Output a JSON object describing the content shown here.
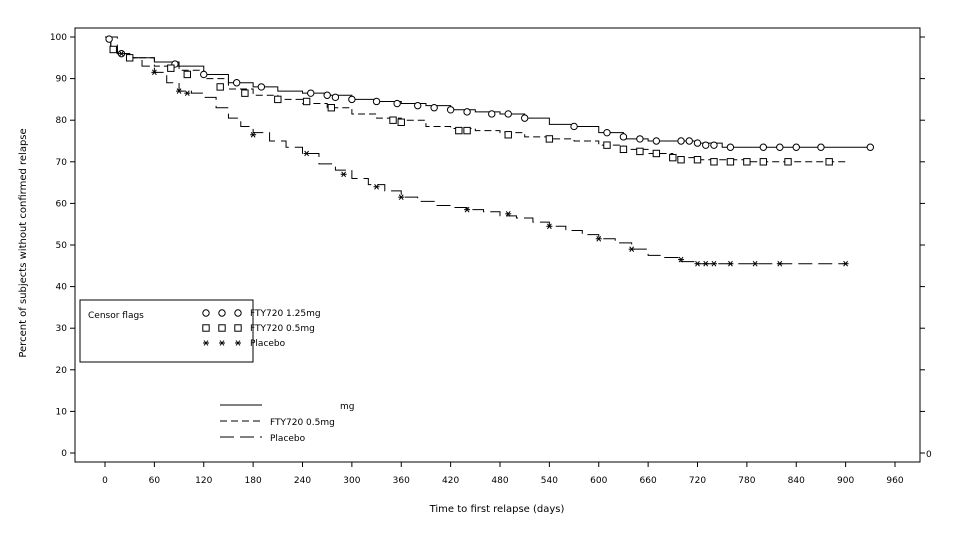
{
  "chart_data": {
    "type": "line",
    "title": "",
    "xlabel": "Time to first relapse (days)",
    "ylabel": "Percent of subjects without confirmed relapse",
    "xlim": [
      0,
      960
    ],
    "ylim": [
      0,
      100
    ],
    "xticks": [
      "0",
      "60",
      "120",
      "180",
      "240",
      "300",
      "360",
      "420",
      "480",
      "540",
      "600",
      "660",
      "720",
      "780",
      "840",
      "900",
      "960"
    ],
    "yticks": [
      "0",
      "10",
      "20",
      "30",
      "40",
      "50",
      "60",
      "70",
      "80",
      "90",
      "100"
    ],
    "right_axis_label": "0",
    "grid": false,
    "censor_legend": {
      "title": "Censor flags",
      "placement": "lower-left",
      "entries": [
        {
          "symbols": "O O O",
          "label": "FTY720 1.25mg"
        },
        {
          "symbols": "□ □ □",
          "label": "FTY720 0.5mg"
        },
        {
          "symbols": "* * *",
          "label": "Placebo"
        }
      ]
    },
    "line_legend": {
      "placement": "below-left",
      "entries": [
        {
          "style": "solid",
          "label": "mg"
        },
        {
          "style": "dashed",
          "label": "FTY720 0.5mg"
        },
        {
          "style": "long-dash",
          "label": "Placebo"
        }
      ]
    },
    "series": [
      {
        "name": "FTY720 1.25mg",
        "line_style": "solid",
        "marker": "circle",
        "x": [
          0,
          7,
          15,
          30,
          60,
          90,
          120,
          150,
          180,
          210,
          240,
          270,
          300,
          330,
          360,
          390,
          420,
          450,
          480,
          510,
          540,
          570,
          600,
          630,
          660,
          690,
          720,
          750,
          780,
          810,
          840,
          870,
          900,
          930
        ],
        "y": [
          100,
          97,
          96,
          95,
          94,
          93,
          91,
          89,
          88,
          87,
          86.5,
          86,
          85,
          84.5,
          84,
          83.5,
          82.5,
          82,
          81.5,
          80.5,
          79,
          78.5,
          77,
          75.5,
          75,
          75,
          74.5,
          73.5,
          73.5,
          73.5,
          73.5,
          73.5,
          73.5,
          73.5
        ],
        "censor_x": [
          5,
          20,
          85,
          120,
          160,
          190,
          250,
          270,
          280,
          300,
          330,
          355,
          380,
          400,
          420,
          440,
          470,
          490,
          510,
          570,
          610,
          630,
          650,
          670,
          700,
          710,
          720,
          730,
          740,
          760,
          800,
          820,
          840,
          870,
          930
        ],
        "censor_y": [
          99.5,
          96,
          93.5,
          91,
          89,
          88,
          86.5,
          86,
          85.5,
          85,
          84.5,
          84,
          83.5,
          83,
          82.5,
          82,
          81.5,
          81.5,
          80.5,
          78.5,
          77,
          76,
          75.5,
          75,
          75,
          75,
          74.5,
          74,
          74,
          73.5,
          73.5,
          73.5,
          73.5,
          73.5,
          73.5
        ]
      },
      {
        "name": "FTY720 0.5mg",
        "line_style": "dashed",
        "marker": "square",
        "x": [
          0,
          7,
          15,
          30,
          60,
          90,
          120,
          150,
          180,
          210,
          240,
          270,
          300,
          330,
          360,
          390,
          420,
          450,
          480,
          510,
          540,
          570,
          600,
          630,
          660,
          690,
          720,
          750,
          780,
          810,
          840,
          870,
          900
        ],
        "y": [
          100,
          97.5,
          96,
          95,
          93,
          92,
          90,
          87.5,
          86,
          85,
          84,
          83,
          81.5,
          80.5,
          80,
          78.5,
          78,
          77.5,
          77,
          76,
          75.5,
          75,
          74,
          73,
          72,
          71,
          70.5,
          70.5,
          70,
          70,
          70,
          70,
          70
        ],
        "censor_x": [
          10,
          30,
          80,
          100,
          140,
          170,
          210,
          245,
          275,
          350,
          360,
          430,
          440,
          490,
          540,
          610,
          630,
          650,
          670,
          690,
          700,
          720,
          740,
          760,
          780,
          800,
          830,
          880
        ],
        "censor_y": [
          97,
          95,
          92.5,
          91,
          88,
          86.5,
          85,
          84.5,
          83,
          80,
          79.5,
          77.5,
          77.5,
          76.5,
          75.5,
          74,
          73,
          72.5,
          72,
          71,
          70.5,
          70.5,
          70,
          70,
          70,
          70,
          70,
          70
        ]
      },
      {
        "name": "Placebo",
        "line_style": "long-dash",
        "marker": "star",
        "x": [
          0,
          15,
          30,
          45,
          60,
          75,
          90,
          105,
          120,
          135,
          150,
          165,
          180,
          200,
          220,
          240,
          260,
          280,
          300,
          320,
          340,
          360,
          380,
          400,
          420,
          440,
          460,
          480,
          500,
          520,
          540,
          560,
          580,
          600,
          620,
          640,
          660,
          680,
          700,
          720,
          740,
          760,
          800,
          840,
          900
        ],
        "y": [
          100,
          96,
          95,
          93,
          91.5,
          89,
          87,
          86.5,
          85.5,
          83,
          80.5,
          78.5,
          77,
          75,
          73.5,
          72,
          69.5,
          68,
          66,
          64.5,
          63,
          61.5,
          60.5,
          59.5,
          59,
          58.5,
          58,
          57,
          56.5,
          55.5,
          54.5,
          53.5,
          52.5,
          51.5,
          50.5,
          49,
          47.5,
          47,
          46,
          45.5,
          45.5,
          45.5,
          45.5,
          45.5,
          45.5
        ],
        "censor_x": [
          20,
          60,
          90,
          100,
          180,
          245,
          290,
          330,
          360,
          440,
          490,
          540,
          600,
          640,
          700,
          720,
          730,
          740,
          760,
          790,
          820,
          900
        ],
        "censor_y": [
          96,
          91.5,
          87,
          86.5,
          76.5,
          72,
          67,
          64,
          61.5,
          58.5,
          57.5,
          54.5,
          51.5,
          49,
          46.5,
          45.5,
          45.5,
          45.5,
          45.5,
          45.5,
          45.5,
          45.5
        ]
      }
    ]
  }
}
